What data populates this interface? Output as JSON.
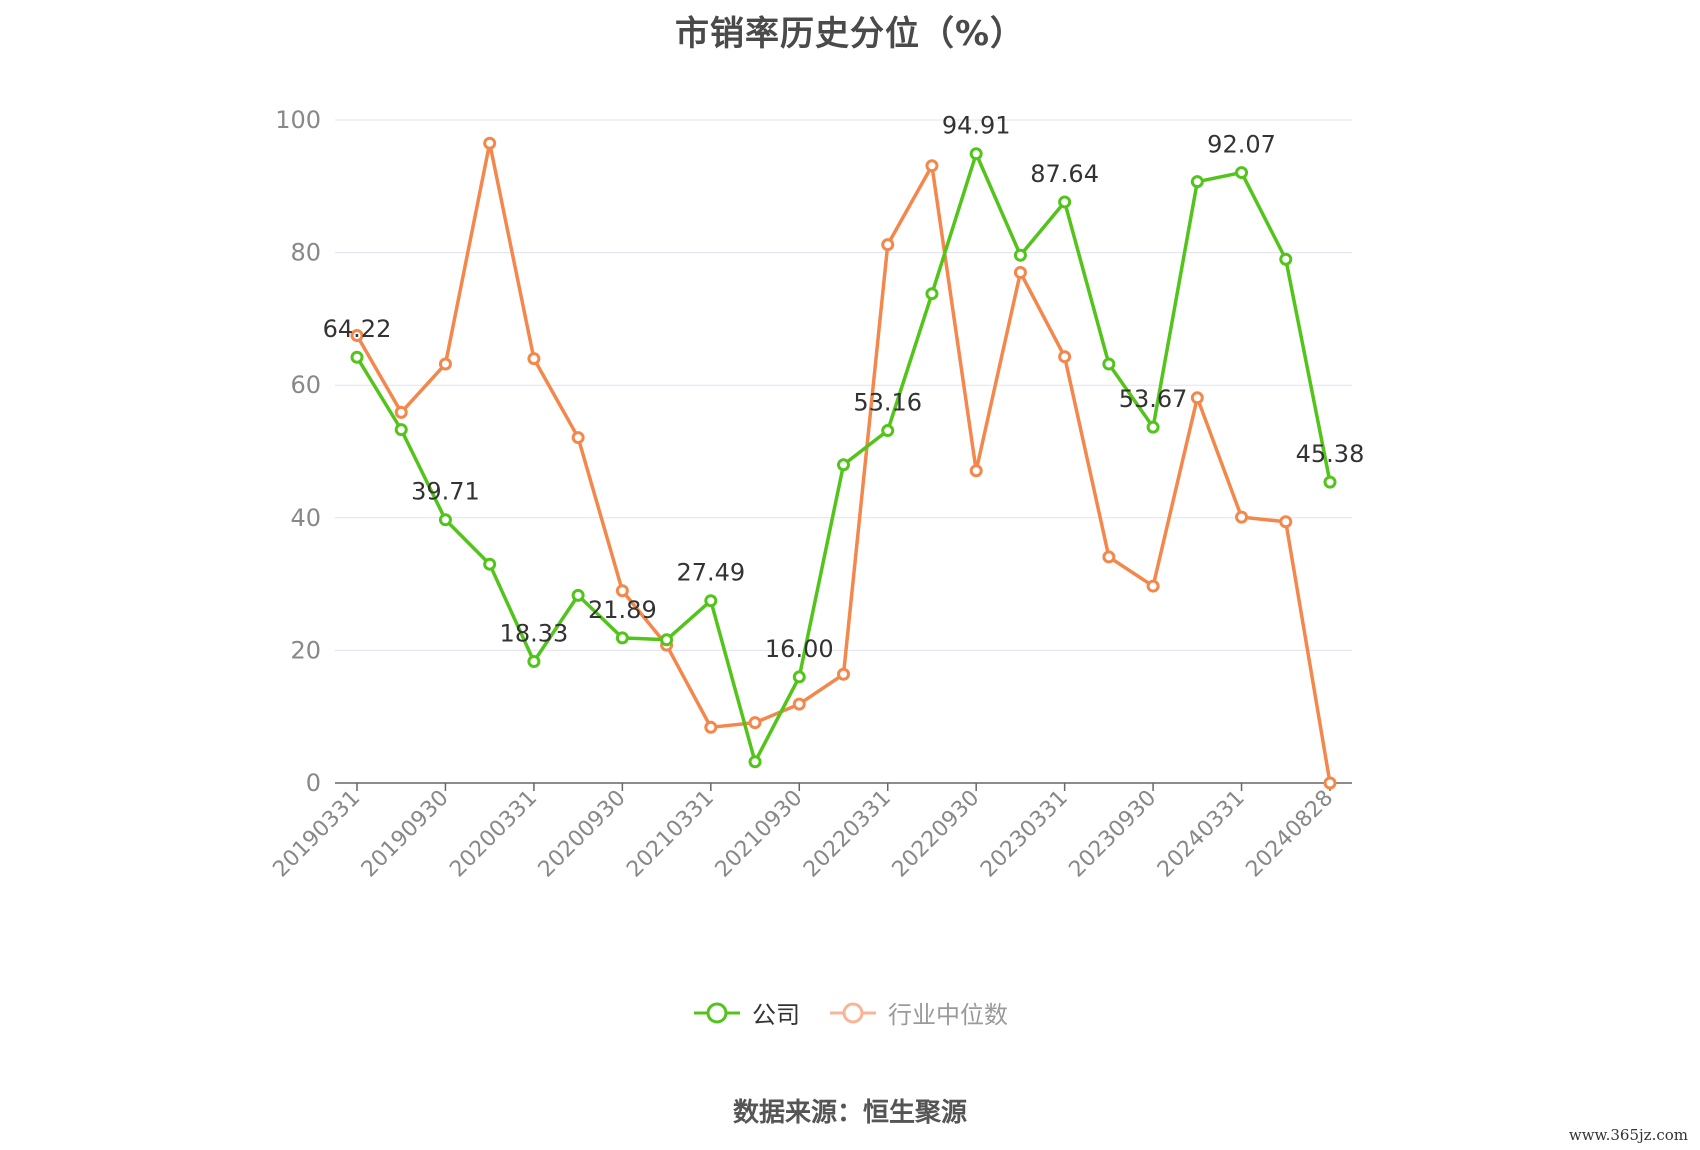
{
  "title": "市销率历史分位（%）",
  "source": "数据来源：恒生聚源",
  "watermark": "www.365jz.com",
  "colors": {
    "company": "#52c41a",
    "industry": "#f4874b",
    "industry_legend": "#f9b497",
    "grid": "#dfe3f0",
    "axis": "#666666",
    "tick_text": "#888888"
  },
  "chart_data": {
    "type": "line",
    "title": "市销率历史分位（%）",
    "xlabel": "",
    "ylabel": "",
    "ylim": [
      0,
      100
    ],
    "yticks": [
      0,
      20,
      40,
      60,
      80,
      100
    ],
    "grid": true,
    "legend_position": "bottom",
    "x": [
      "20190331",
      "20190630",
      "20190930",
      "20191231",
      "20200331",
      "20200630",
      "20200930",
      "20201231",
      "20210331",
      "20210630",
      "20210930",
      "20211231",
      "20220331",
      "20220630",
      "20220930",
      "20221231",
      "20230331",
      "20230630",
      "20230930",
      "20231231",
      "20240331",
      "20240630",
      "20240828"
    ],
    "x_tick_labels": [
      "20190331",
      "20190930",
      "20200331",
      "20200930",
      "20210331",
      "20210930",
      "20220331",
      "20220930",
      "20230331",
      "20230930",
      "20240331",
      "20240828"
    ],
    "series": [
      {
        "name": "公司",
        "values": [
          64.22,
          53.3,
          39.71,
          33.0,
          18.33,
          28.3,
          21.89,
          21.6,
          27.49,
          3.2,
          16.0,
          48.0,
          53.16,
          73.8,
          94.91,
          79.6,
          87.64,
          63.2,
          53.67,
          90.7,
          92.07,
          79.0,
          45.38
        ],
        "labels": [
          "64.22",
          "",
          "39.71",
          "",
          "18.33",
          "",
          "21.89",
          "",
          "27.49",
          "",
          "16.00",
          "",
          "53.16",
          "",
          "94.91",
          "",
          "87.64",
          "",
          "53.67",
          "",
          "92.07",
          "",
          "45.38"
        ]
      },
      {
        "name": "行业中位数",
        "values": [
          67.5,
          55.9,
          63.2,
          96.5,
          64.0,
          52.1,
          29.0,
          20.8,
          8.4,
          9.1,
          11.9,
          16.4,
          81.2,
          93.1,
          47.1,
          77.0,
          64.3,
          34.1,
          29.7,
          58.1,
          40.1,
          39.4,
          0.0
        ]
      }
    ]
  }
}
